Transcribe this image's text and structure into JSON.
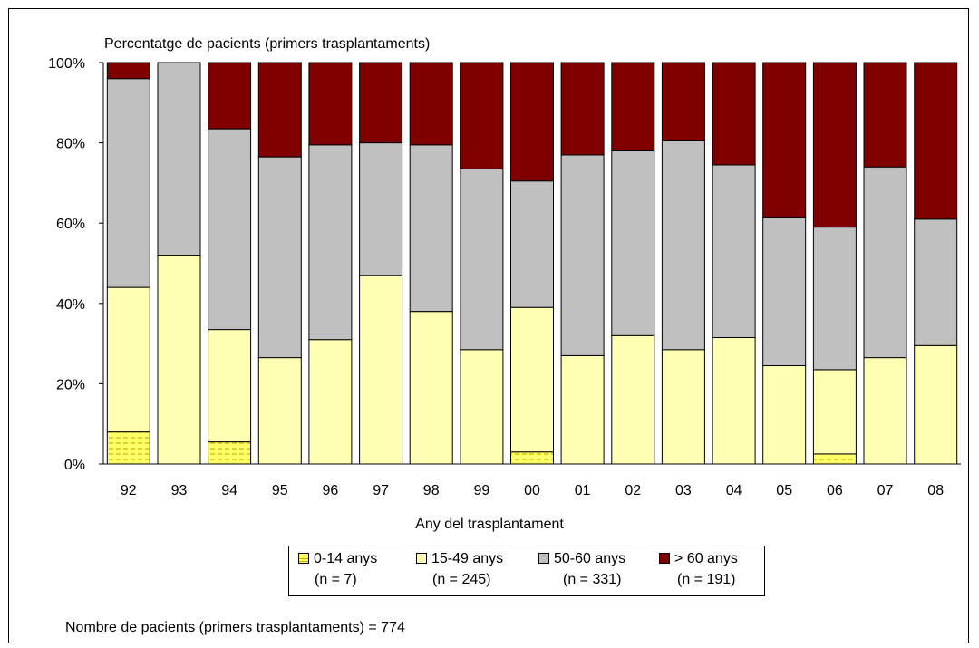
{
  "chart_data": {
    "type": "bar",
    "stacked": true,
    "percent": true,
    "title": "Percentatge de pacients (primers trasplantaments)",
    "xlabel": "Any del trasplantament",
    "ylabel": "",
    "ylim": [
      0,
      100
    ],
    "yticks": [
      "0%",
      "20%",
      "40%",
      "60%",
      "80%",
      "100%"
    ],
    "grid": false,
    "legend_position": "bottom",
    "categories": [
      "92",
      "93",
      "94",
      "95",
      "96",
      "97",
      "98",
      "99",
      "00",
      "01",
      "02",
      "03",
      "04",
      "05",
      "06",
      "07",
      "08"
    ],
    "series": [
      {
        "name": "0-14 anys",
        "count_label": "(n = 7)",
        "color": "#ffffaa",
        "pattern": "dashed",
        "values": [
          8,
          0,
          5.5,
          0,
          0,
          0,
          0,
          0,
          3,
          0,
          0,
          0,
          0,
          0,
          2.5,
          0,
          0
        ]
      },
      {
        "name": "15-49 anys",
        "count_label": "(n = 245)",
        "color": "#ffffb3",
        "values": [
          36,
          52,
          28,
          26.5,
          31,
          47,
          38,
          28.5,
          36,
          27,
          32,
          28.5,
          31.5,
          24.5,
          21,
          26.5,
          29.5
        ]
      },
      {
        "name": "50-60 anys",
        "count_label": "(n = 331)",
        "color": "#c0c0c0",
        "values": [
          52,
          48,
          50,
          50,
          48.5,
          33,
          41.5,
          45,
          31.5,
          50,
          46,
          52,
          43,
          37,
          35.5,
          47.5,
          31.5
        ]
      },
      {
        "name": "> 60 anys",
        "count_label": "(n = 191)",
        "color": "#800000",
        "values": [
          4,
          0,
          16.5,
          23.5,
          20.5,
          20,
          20.5,
          26.5,
          29.5,
          23,
          22,
          19.5,
          25.5,
          38.5,
          41,
          26,
          39
        ]
      }
    ]
  },
  "footnote": "Nombre de pacients (primers trasplantaments) = 774"
}
